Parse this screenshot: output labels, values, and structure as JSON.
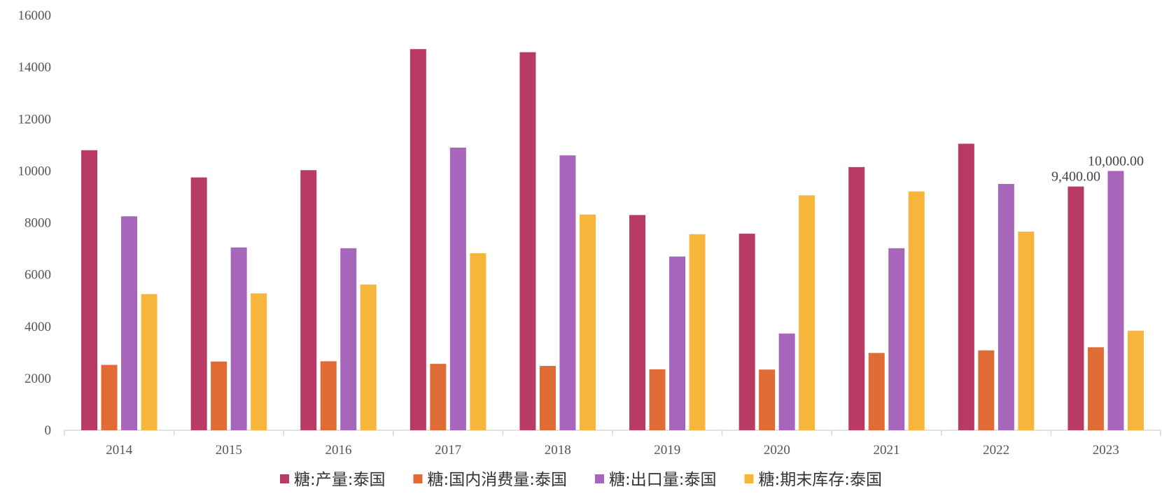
{
  "chart_data": {
    "type": "bar",
    "categories": [
      "2014",
      "2015",
      "2016",
      "2017",
      "2018",
      "2019",
      "2020",
      "2021",
      "2022",
      "2023"
    ],
    "series": [
      {
        "name": "糖:产量:泰国",
        "color": "#B83A65",
        "values": [
          10800,
          9750,
          10030,
          14700,
          14580,
          8300,
          7580,
          10150,
          11050,
          9400
        ]
      },
      {
        "name": "糖:国内消费量:泰国",
        "color": "#E06B34",
        "values": [
          2520,
          2650,
          2660,
          2560,
          2480,
          2350,
          2340,
          2980,
          3080,
          3200
        ]
      },
      {
        "name": "糖:出口量:泰国",
        "color": "#A865BC",
        "values": [
          8250,
          7050,
          7020,
          10900,
          10600,
          6700,
          3730,
          7020,
          9500,
          10000
        ]
      },
      {
        "name": "糖:期末库存:泰国",
        "color": "#F7B53C",
        "values": [
          5250,
          5280,
          5620,
          6830,
          8320,
          7560,
          9060,
          9210,
          7660,
          3840
        ]
      }
    ],
    "ylim": [
      0,
      16000
    ],
    "yticks": [
      "0",
      "2000",
      "4000",
      "6000",
      "8000",
      "10000",
      "12000",
      "14000",
      "16000"
    ],
    "data_labels": [
      {
        "series": 0,
        "index": 9,
        "text": "9,400.00"
      },
      {
        "series": 2,
        "index": 9,
        "text": "10,000.00"
      }
    ],
    "grid": false,
    "legend_position": "bottom"
  }
}
